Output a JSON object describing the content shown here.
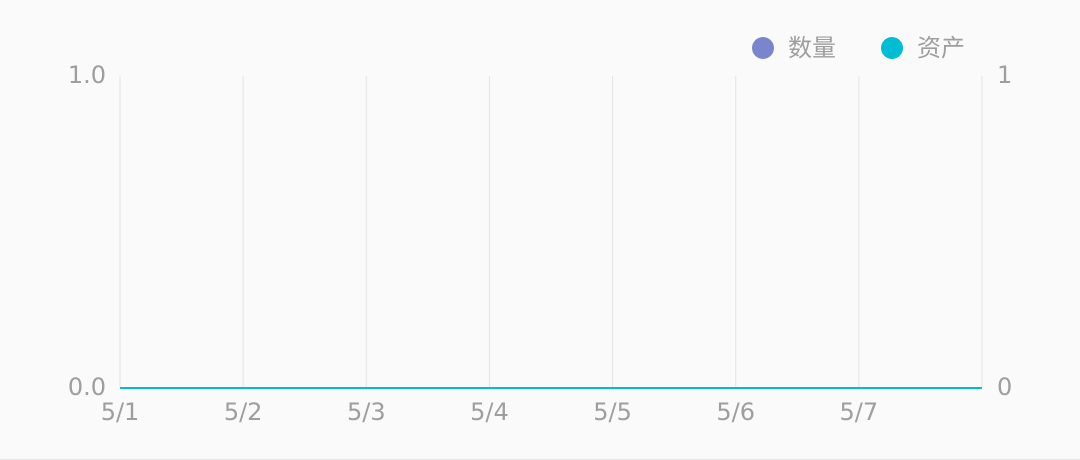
{
  "chart_data": {
    "type": "line",
    "categories": [
      "5/1",
      "5/2",
      "5/3",
      "5/4",
      "5/5",
      "5/6",
      "5/7",
      null
    ],
    "series": [
      {
        "name": "数量",
        "color": "#7986cb",
        "values": [
          0,
          0,
          0,
          0,
          0,
          0,
          0,
          0
        ]
      },
      {
        "name": "资产",
        "color": "#00bcd4",
        "axis": "y2",
        "values": [
          0,
          0,
          0,
          0,
          0,
          0,
          0,
          0
        ]
      }
    ],
    "ylim": [
      0,
      1
    ],
    "yticks": [
      {
        "value": 0,
        "label": "0.0"
      },
      {
        "value": 1,
        "label": "1.0"
      }
    ],
    "y2lim": [
      0,
      1
    ],
    "y2ticks": [
      0,
      1
    ],
    "grid": true,
    "legend": "top-right"
  }
}
